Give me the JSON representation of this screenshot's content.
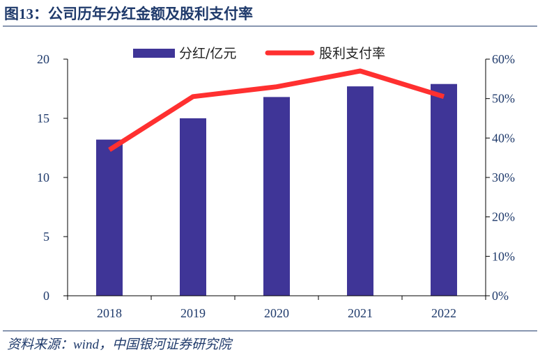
{
  "figure": {
    "title": "图13：公司历年分红金额及股利支付率",
    "source": "资料来源：wind，中国银河证券研究院"
  },
  "colors": {
    "bar": "#3f3597",
    "line": "#ff3030",
    "text": "#1f3a6b"
  },
  "chart_data": {
    "type": "bar",
    "title": "",
    "categories": [
      "2018",
      "2019",
      "2020",
      "2021",
      "2022"
    ],
    "series": [
      {
        "name": "分红/亿元",
        "type": "bar",
        "axis": "left",
        "values": [
          13.2,
          15.0,
          16.8,
          17.7,
          17.9
        ]
      },
      {
        "name": "股利支付率",
        "type": "line",
        "axis": "right",
        "values": [
          0.37,
          0.505,
          0.53,
          0.57,
          0.505
        ]
      }
    ],
    "y_left": {
      "ylim": [
        0,
        20
      ],
      "ticks": [
        "0",
        "5",
        "10",
        "15",
        "20"
      ]
    },
    "y_right": {
      "ylim": [
        0,
        0.6
      ],
      "ticks": [
        "0%",
        "10%",
        "20%",
        "30%",
        "40%",
        "50%",
        "60%"
      ]
    },
    "legend_position": "top-center",
    "grid": false
  }
}
